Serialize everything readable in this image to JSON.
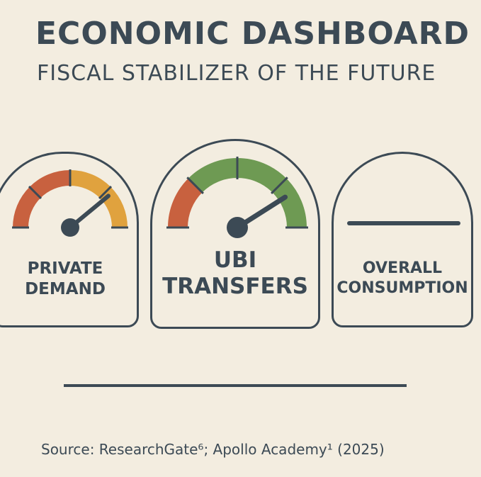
{
  "header": {
    "title": "ECONOMIC DASHBOARD",
    "subtitle": "FISCAL STABILIZER OF THE FUTURE"
  },
  "gauges": [
    {
      "label_line1": "PRIVATE",
      "label_line2": "DEMAND",
      "needle_level": 0.78,
      "arc_colors": [
        "#c8613f",
        "#c8613f",
        "#e0a23e",
        "#e0a23e"
      ]
    },
    {
      "label_line1": "UBI",
      "label_line2": "TRANSFERS",
      "needle_level": 0.82,
      "arc_colors": [
        "#c8613f",
        "#6e9a53",
        "#6e9a53",
        "#6e9a53"
      ]
    },
    {
      "label_line1": "OVERALL",
      "label_line2": "CONSUMPTION",
      "needle_level": null,
      "arc_colors": []
    }
  ],
  "colors": {
    "ink": "#3c4a55",
    "background": "#f3ede0",
    "red": "#c8613f",
    "orange": "#e0a23e",
    "green": "#6e9a53"
  },
  "footer": {
    "source": "Source: ResearchGate⁶; Apollo Academy¹ (2025)"
  }
}
